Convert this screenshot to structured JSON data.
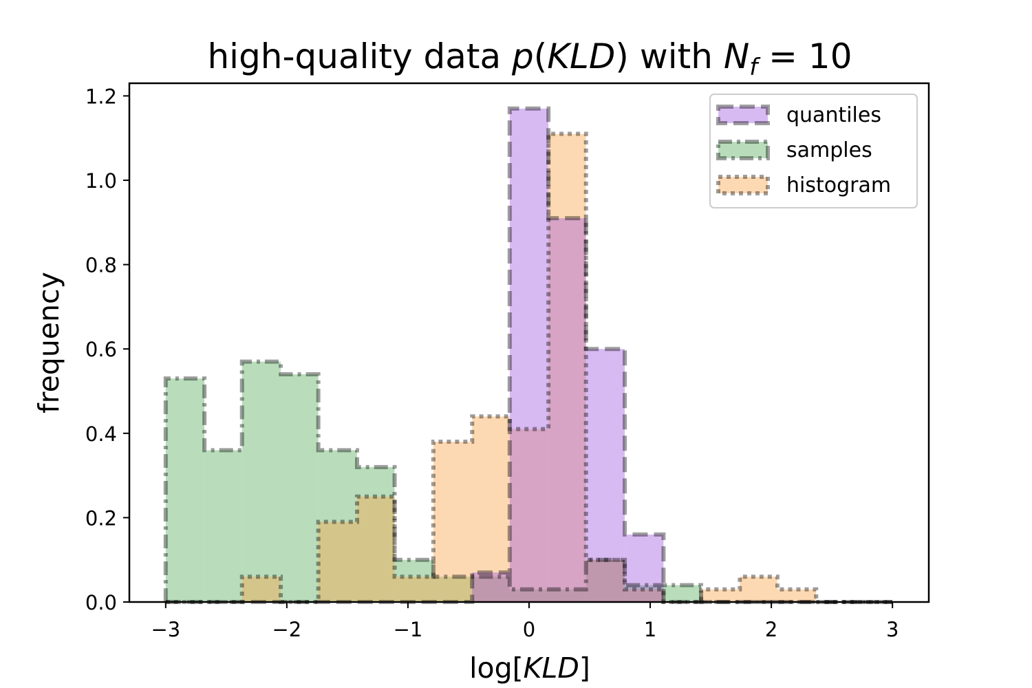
{
  "chart_data": {
    "type": "histogram",
    "title": {
      "prefix": "high-quality data ",
      "func": "p",
      "open": "(",
      "arg": "KLD",
      "close": ")",
      "middle": " with ",
      "var": "N",
      "sub": "f",
      "equals": " = 10"
    },
    "xlabel": {
      "prefix": "log[",
      "var": "KLD",
      "suffix": "]"
    },
    "ylabel": "frequency",
    "xlim": [
      -3.3,
      3.3
    ],
    "ylim": [
      0.0,
      1.23
    ],
    "xticks": [
      -3,
      -2,
      -1,
      0,
      1,
      2,
      3
    ],
    "xtick_labels": [
      "−3",
      "−2",
      "−1",
      "0",
      "1",
      "2",
      "3"
    ],
    "yticks": [
      0.0,
      0.2,
      0.4,
      0.6,
      0.8,
      1.0,
      1.2
    ],
    "ytick_labels": [
      "0.0",
      "0.2",
      "0.4",
      "0.6",
      "0.8",
      "1.0",
      "1.2"
    ],
    "bin_edges": [
      -3.0,
      -2.68,
      -2.37,
      -2.05,
      -1.74,
      -1.42,
      -1.11,
      -0.79,
      -0.47,
      -0.16,
      0.16,
      0.47,
      0.79,
      1.11,
      1.42,
      1.74,
      2.05,
      2.37,
      2.68,
      3.0
    ],
    "legend_position": "upper right",
    "series": [
      {
        "name": "samples",
        "color": "#59ad5d",
        "linestyle": "dashdot",
        "values": [
          0.53,
          0.36,
          0.57,
          0.54,
          0.36,
          0.32,
          0.1,
          0.06,
          0.06,
          0.03,
          0.03,
          0.1,
          0.04,
          0.04,
          0.0,
          0.0,
          0.0,
          0.0,
          0.0
        ]
      },
      {
        "name": "histogram",
        "color": "#fba54a",
        "linestyle": "dotted",
        "values": [
          0.0,
          0.0,
          0.06,
          0.0,
          0.19,
          0.25,
          0.06,
          0.38,
          0.44,
          0.41,
          1.11,
          0.1,
          0.03,
          0.0,
          0.03,
          0.06,
          0.03,
          0.0,
          0.0
        ]
      },
      {
        "name": "quantiles",
        "color": "#a35ae0",
        "linestyle": "dashed",
        "values": [
          0.0,
          0.0,
          0.0,
          0.0,
          0.0,
          0.0,
          0.0,
          0.0,
          0.07,
          1.17,
          0.91,
          0.6,
          0.16,
          0.0,
          0.0,
          0.0,
          0.0,
          0.0,
          0.0
        ]
      }
    ],
    "legend_order": [
      "quantiles",
      "samples",
      "histogram"
    ]
  }
}
